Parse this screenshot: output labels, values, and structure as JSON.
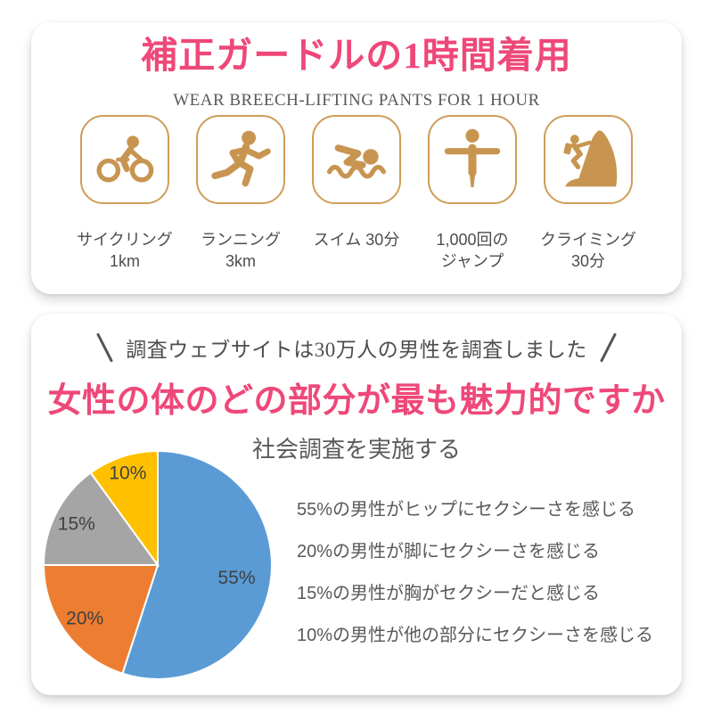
{
  "colors": {
    "accent_pink": "#ee4879",
    "icon_gold": "#c89551",
    "icon_border_gold": "#cf9d58",
    "body_gray": "#595959",
    "label_gray": "#4d4d4d",
    "card_bg": "#ffffff"
  },
  "top_card": {
    "title": "補正ガードルの1時間着用",
    "subtitle": "WEAR BREECH-LIFTING PANTS FOR 1 HOUR",
    "activities": [
      {
        "icon": "cycling-icon",
        "label_line1": "サイクリング",
        "label_line2": "1km"
      },
      {
        "icon": "running-icon",
        "label_line1": "ランニング",
        "label_line2": "3km"
      },
      {
        "icon": "swimming-icon",
        "label_line1": "スイム 30分",
        "label_line2": ""
      },
      {
        "icon": "jumping-icon",
        "label_line1": "1,000回の",
        "label_line2": "ジャンプ"
      },
      {
        "icon": "climbing-icon",
        "label_line1": "クライミング",
        "label_line2": "30分"
      }
    ]
  },
  "survey_card": {
    "tagline": "調査ウェブサイトは30万人の男性を調査しました",
    "headline": "女性の体のどの部分が最も魅力的ですか",
    "subheadline": "社会調査を実施する",
    "facts": [
      "55%の男性がヒップにセクシーさを感じる",
      "20%の男性が脚にセクシーさを感じる",
      "15%の男性が胸がセクシーだと感じる",
      "10%の男性が他の部分にセクシーさを感じる"
    ]
  },
  "chart_data": {
    "type": "pie",
    "title": "社会調査を実施する",
    "question": "女性の体のどの部分が最も魅力的ですか",
    "labels": [
      "ヒップ",
      "脚",
      "胸",
      "他の部分"
    ],
    "values": [
      55,
      20,
      15,
      10
    ],
    "unit": "%",
    "slice_labels": [
      "55%",
      "20%",
      "15%",
      "10%"
    ],
    "colors": [
      "#5b9bd5",
      "#ed7d31",
      "#a5a5a5",
      "#ffc000"
    ],
    "start_angle_deg": 0,
    "direction": "clockwise",
    "slice_border_color": "#ffffff",
    "legend": "none",
    "label_radius_frac": [
      0.7,
      0.79,
      0.8,
      0.85
    ],
    "annotations": [
      "55%の男性がヒップにセクシーさを感じる",
      "20%の男性が脚にセクシーさを感じる",
      "15%の男性が胸がセクシーだと感じる",
      "10%の男性が他の部分にセクシーさを感じる"
    ]
  }
}
